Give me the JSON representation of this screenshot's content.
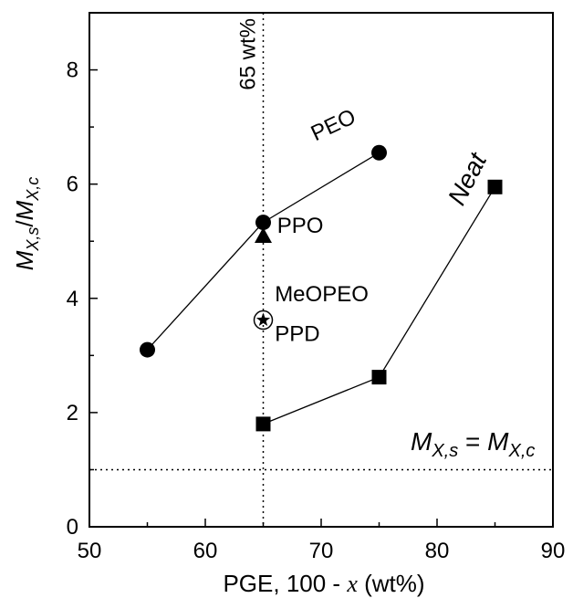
{
  "chart_data": {
    "type": "scatter",
    "title": "",
    "xlabel": "PGE, 100 - x (wt%)",
    "xlabel_parts": {
      "prefix": "PGE, 100 - ",
      "var": "x",
      "suffix": " (wt%)"
    },
    "ylabel": "M_X,s/M_X,c",
    "ylabel_parts": {
      "m1": "M",
      "sub1": "X,s",
      "sep": "/",
      "m2": "M",
      "sub2": "X,c"
    },
    "xlim": [
      50,
      90
    ],
    "ylim": [
      0,
      9
    ],
    "xticks": [
      50,
      60,
      70,
      80,
      90
    ],
    "yticks": [
      0,
      2,
      4,
      6,
      8
    ],
    "grid": false,
    "series": [
      {
        "name": "PEO",
        "marker": "circle",
        "connected": true,
        "points": [
          {
            "x": 55,
            "y": 3.1
          },
          {
            "x": 65,
            "y": 5.33
          },
          {
            "x": 75,
            "y": 6.55
          }
        ]
      },
      {
        "name": "Neat",
        "marker": "square",
        "connected": true,
        "points": [
          {
            "x": 65,
            "y": 1.8
          },
          {
            "x": 75,
            "y": 2.62
          },
          {
            "x": 85,
            "y": 5.95
          }
        ]
      },
      {
        "name": "PPO",
        "marker": "triangle",
        "connected": false,
        "points": [
          {
            "x": 65,
            "y": 5.1
          }
        ]
      },
      {
        "name": "MeOPEO",
        "marker": "open-circle",
        "connected": false,
        "points": [
          {
            "x": 65,
            "y": 3.62
          }
        ]
      },
      {
        "name": "PPD",
        "marker": "star",
        "connected": false,
        "points": [
          {
            "x": 65,
            "y": 3.62
          }
        ]
      }
    ],
    "reference_lines": [
      {
        "orientation": "vertical",
        "value": 65,
        "style": "dotted",
        "label": "65 wt%"
      },
      {
        "orientation": "horizontal",
        "value": 1,
        "style": "dotted",
        "label_parts": {
          "m1": "M",
          "sub1": "X,s",
          "eq": " = ",
          "m2": "M",
          "sub2": "X,c"
        }
      }
    ],
    "annotations": [
      {
        "text": "PEO",
        "x": 69.5,
        "y": 6.75
      },
      {
        "text": "PPO",
        "x": 66.2,
        "y": 5.15
      },
      {
        "text": "MeOPEO",
        "x": 66.0,
        "y": 3.95
      },
      {
        "text": "PPD",
        "x": 66.0,
        "y": 3.25
      },
      {
        "text": "Neat",
        "x": 82.2,
        "y": 5.6
      }
    ]
  }
}
